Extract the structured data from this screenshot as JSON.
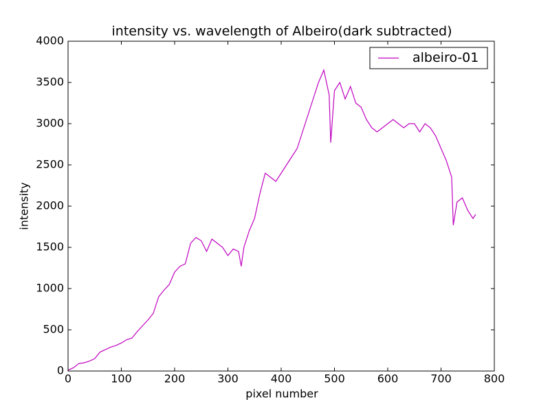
{
  "chart_data": {
    "type": "line",
    "title": "intensity vs. wavelength of Albeiro(dark subtracted)",
    "x_label": "pixel number",
    "y_label": "intensity",
    "xlim": [
      0,
      800
    ],
    "xticks": [
      0,
      100,
      200,
      300,
      400,
      500,
      600,
      700,
      800
    ],
    "ylim": [
      0,
      4000
    ],
    "yticks": [
      0,
      500,
      1000,
      1500,
      2000,
      2500,
      3000,
      3500,
      4000
    ],
    "grid": false,
    "legend_position": "upper-right",
    "series": [
      {
        "name": "albeiro-01",
        "color": "#bf00bf",
        "x": [
          0,
          10,
          20,
          30,
          40,
          50,
          60,
          70,
          80,
          90,
          100,
          110,
          120,
          130,
          140,
          150,
          160,
          170,
          180,
          190,
          200,
          210,
          220,
          230,
          240,
          250,
          260,
          270,
          280,
          290,
          300,
          310,
          320,
          325,
          330,
          340,
          350,
          360,
          370,
          380,
          390,
          400,
          410,
          420,
          430,
          440,
          450,
          460,
          470,
          480,
          490,
          493,
          500,
          510,
          520,
          530,
          540,
          550,
          560,
          570,
          580,
          590,
          600,
          610,
          620,
          630,
          640,
          650,
          660,
          670,
          680,
          690,
          700,
          710,
          720,
          723,
          730,
          740,
          750,
          760,
          765
        ],
        "values": [
          10,
          40,
          90,
          100,
          120,
          150,
          230,
          260,
          290,
          310,
          340,
          380,
          400,
          480,
          550,
          620,
          700,
          900,
          980,
          1050,
          1200,
          1270,
          1300,
          1550,
          1620,
          1580,
          1450,
          1600,
          1550,
          1500,
          1400,
          1480,
          1450,
          1270,
          1500,
          1700,
          1850,
          2150,
          2400,
          2350,
          2300,
          2400,
          2500,
          2600,
          2700,
          2900,
          3100,
          3300,
          3500,
          3650,
          3350,
          2770,
          3400,
          3500,
          3300,
          3450,
          3250,
          3200,
          3050,
          2950,
          2900,
          2950,
          3000,
          3050,
          3000,
          2950,
          3000,
          3000,
          2900,
          3000,
          2950,
          2850,
          2700,
          2550,
          2350,
          1770,
          2050,
          2100,
          1950,
          1850,
          1900
        ]
      }
    ]
  }
}
